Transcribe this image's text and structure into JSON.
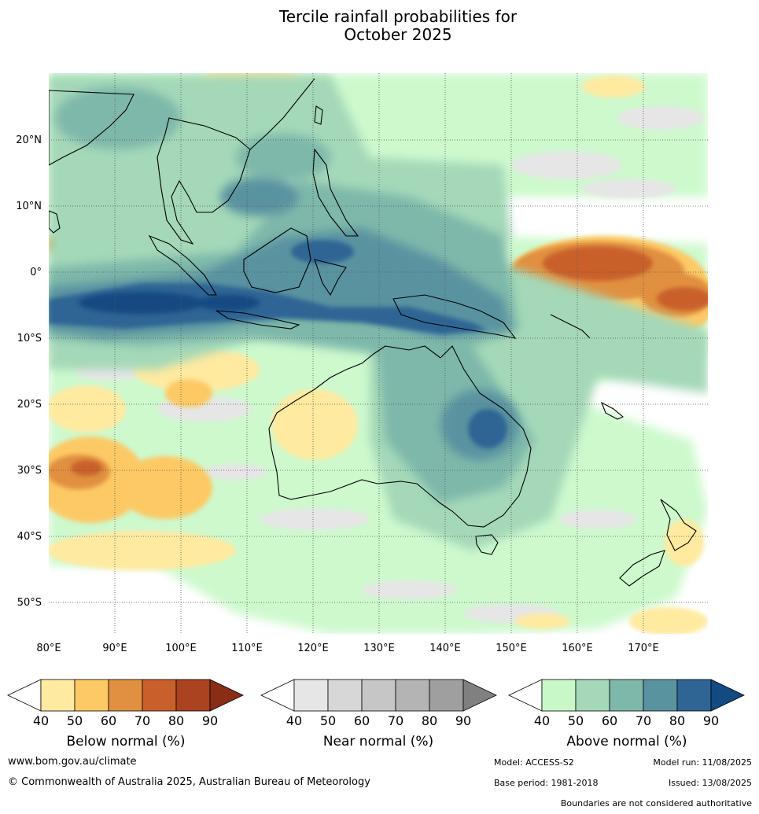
{
  "title": {
    "line1": "Tercile rainfall probabilities for",
    "line2": "October 2025"
  },
  "map": {
    "lat_labels": [
      "20°N",
      "10°N",
      "0°",
      "10°S",
      "20°S",
      "30°S",
      "40°S",
      "50°S"
    ],
    "lon_labels": [
      "80°E",
      "90°E",
      "100°E",
      "110°E",
      "120°E",
      "130°E",
      "140°E",
      "150°E",
      "160°E",
      "170°E"
    ],
    "region": "Indian Ocean, Maritime Continent, Australia, New Zealand, western Pacific"
  },
  "colorbars": [
    {
      "name": "Below normal (%)",
      "ticks": [
        "40",
        "50",
        "60",
        "70",
        "80",
        "90"
      ],
      "colors": [
        "#ffffff",
        "#ffeaa0",
        "#fdc965",
        "#e09040",
        "#c9602c",
        "#ab4220",
        "#8a2d16"
      ]
    },
    {
      "name": "Near normal (%)",
      "ticks": [
        "40",
        "50",
        "60",
        "70",
        "80",
        "90"
      ],
      "colors": [
        "#ffffff",
        "#e6e6e6",
        "#d7d7d7",
        "#c6c6c6",
        "#b4b4b4",
        "#9f9f9f",
        "#808080"
      ]
    },
    {
      "name": "Above normal (%)",
      "ticks": [
        "40",
        "50",
        "60",
        "70",
        "80",
        "90"
      ],
      "colors": [
        "#ffffff",
        "#c8f8c8",
        "#a4d8b8",
        "#7eb8aa",
        "#5a93a0",
        "#2f6594",
        "#124a82"
      ]
    }
  ],
  "footer": {
    "website": "www.bom.gov.au/climate",
    "copyright": "© Commonwealth of Australia 2025, Australian Bureau of Meteorology",
    "model": "Model: ACCESS-S2",
    "model_run": "Model run: 11/08/2025",
    "base_period": "Base period: 1981-2018",
    "issued": "Issued: 13/08/2025",
    "disclaimer": "Boundaries are not considered authoritative"
  }
}
